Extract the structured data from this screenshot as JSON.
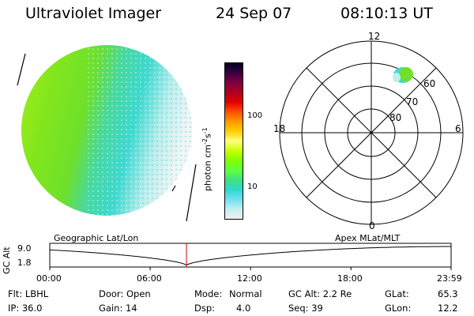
{
  "header": {
    "instrument": "Ultraviolet Imager",
    "date": "24 Sep 07",
    "time": "08:10:13 UT"
  },
  "colorbar": {
    "unit_prefix": "photon cm",
    "unit_exp1": "-2",
    "unit_mid": "s",
    "unit_exp2": "-1",
    "tick_100": "100",
    "tick_10": "10",
    "colors": [
      "#000020",
      "#3a0040",
      "#800040",
      "#b00020",
      "#e00000",
      "#ff5000",
      "#ff9800",
      "#ffd000",
      "#ffff80",
      "#c8ff00",
      "#80ff00",
      "#60ff40",
      "#40e080",
      "#30d8d0",
      "#70e0f0",
      "#c0f0f0",
      "#f0f0f0"
    ]
  },
  "polar_plot": {
    "mlt_12": "12",
    "mlt_18": "18",
    "mlt_6": "6",
    "mlt_0": "0",
    "lat_60": "60",
    "lat_70": "70",
    "lat_80": "80"
  },
  "altitude_plot": {
    "y_label": "GC Alt",
    "y_max": "9.0",
    "y_min": "1.8",
    "left_title": "Geographic Lat/Lon",
    "right_title": "Apex MLat/MLT",
    "x_ticks": [
      "00:00",
      "06:00",
      "12:00",
      "18:00",
      "23:59"
    ],
    "current_time_hours": 8.17,
    "time_marker_color": "#cc0000"
  },
  "footer": {
    "filter": "Flt: LBHL",
    "ip": "IP: 36.0",
    "door": "Door: Open",
    "gain": "Gain: 14",
    "mode_label": "Mode:",
    "mode_value": "Normal",
    "dsp_label": "Dsp:",
    "dsp_value": "4.0",
    "gc_alt": "GC Alt: 2.2 Re",
    "seq": "Seq: 39",
    "glat_label": "GLat:",
    "glat_value": "65.3",
    "glon_label": "GLon:",
    "glon_value": "12.2"
  },
  "image_colors": {
    "green": "#7ee018",
    "cyan": "#30d8d0",
    "light": "#d8f0f0",
    "white": "#f0f0f0"
  }
}
